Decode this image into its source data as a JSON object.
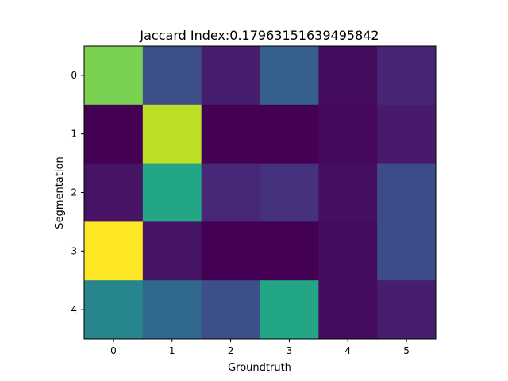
{
  "chart_data": {
    "type": "heatmap",
    "title": "Jaccard Index:0.17963151639495842",
    "xlabel": "Groundtruth",
    "ylabel": "Segmentation",
    "x_ticks": [
      "0",
      "1",
      "2",
      "3",
      "4",
      "5"
    ],
    "y_ticks": [
      "0",
      "1",
      "2",
      "3",
      "4"
    ],
    "colormap": "viridis",
    "value_range": [
      0,
      1
    ],
    "values": [
      [
        0.8,
        0.24,
        0.08,
        0.3,
        0.03,
        0.1
      ],
      [
        0.0,
        0.9,
        0.0,
        0.0,
        0.02,
        0.07
      ],
      [
        0.05,
        0.59,
        0.11,
        0.14,
        0.04,
        0.23
      ],
      [
        1.0,
        0.05,
        0.0,
        0.0,
        0.03,
        0.23
      ],
      [
        0.45,
        0.34,
        0.24,
        0.59,
        0.03,
        0.08
      ]
    ],
    "grid": false
  }
}
